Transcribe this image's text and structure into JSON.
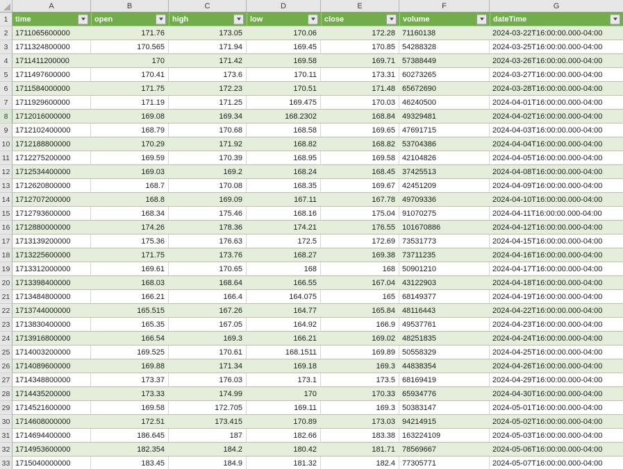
{
  "column_letters": [
    "A",
    "B",
    "C",
    "D",
    "E",
    "F",
    "G"
  ],
  "header": {
    "row_number": "1",
    "labels": [
      "time",
      "open",
      "high",
      "low",
      "close",
      "volume",
      "dateTime"
    ]
  },
  "first_data_row_number": 2,
  "active_row_number": 8,
  "rows": [
    [
      "1711065600000",
      "171.76",
      "173.05",
      "170.06",
      "172.28",
      "71160138",
      "2024-03-22T16:00:00.000-04:00"
    ],
    [
      "1711324800000",
      "170.565",
      "171.94",
      "169.45",
      "170.85",
      "54288328",
      "2024-03-25T16:00:00.000-04:00"
    ],
    [
      "1711411200000",
      "170",
      "171.42",
      "169.58",
      "169.71",
      "57388449",
      "2024-03-26T16:00:00.000-04:00"
    ],
    [
      "1711497600000",
      "170.41",
      "173.6",
      "170.11",
      "173.31",
      "60273265",
      "2024-03-27T16:00:00.000-04:00"
    ],
    [
      "1711584000000",
      "171.75",
      "172.23",
      "170.51",
      "171.48",
      "65672690",
      "2024-03-28T16:00:00.000-04:00"
    ],
    [
      "1711929600000",
      "171.19",
      "171.25",
      "169.475",
      "170.03",
      "46240500",
      "2024-04-01T16:00:00.000-04:00"
    ],
    [
      "1712016000000",
      "169.08",
      "169.34",
      "168.2302",
      "168.84",
      "49329481",
      "2024-04-02T16:00:00.000-04:00"
    ],
    [
      "1712102400000",
      "168.79",
      "170.68",
      "168.58",
      "169.65",
      "47691715",
      "2024-04-03T16:00:00.000-04:00"
    ],
    [
      "1712188800000",
      "170.29",
      "171.92",
      "168.82",
      "168.82",
      "53704386",
      "2024-04-04T16:00:00.000-04:00"
    ],
    [
      "1712275200000",
      "169.59",
      "170.39",
      "168.95",
      "169.58",
      "42104826",
      "2024-04-05T16:00:00.000-04:00"
    ],
    [
      "1712534400000",
      "169.03",
      "169.2",
      "168.24",
      "168.45",
      "37425513",
      "2024-04-08T16:00:00.000-04:00"
    ],
    [
      "1712620800000",
      "168.7",
      "170.08",
      "168.35",
      "169.67",
      "42451209",
      "2024-04-09T16:00:00.000-04:00"
    ],
    [
      "1712707200000",
      "168.8",
      "169.09",
      "167.11",
      "167.78",
      "49709336",
      "2024-04-10T16:00:00.000-04:00"
    ],
    [
      "1712793600000",
      "168.34",
      "175.46",
      "168.16",
      "175.04",
      "91070275",
      "2024-04-11T16:00:00.000-04:00"
    ],
    [
      "1712880000000",
      "174.26",
      "178.36",
      "174.21",
      "176.55",
      "101670886",
      "2024-04-12T16:00:00.000-04:00"
    ],
    [
      "1713139200000",
      "175.36",
      "176.63",
      "172.5",
      "172.69",
      "73531773",
      "2024-04-15T16:00:00.000-04:00"
    ],
    [
      "1713225600000",
      "171.75",
      "173.76",
      "168.27",
      "169.38",
      "73711235",
      "2024-04-16T16:00:00.000-04:00"
    ],
    [
      "1713312000000",
      "169.61",
      "170.65",
      "168",
      "168",
      "50901210",
      "2024-04-17T16:00:00.000-04:00"
    ],
    [
      "1713398400000",
      "168.03",
      "168.64",
      "166.55",
      "167.04",
      "43122903",
      "2024-04-18T16:00:00.000-04:00"
    ],
    [
      "1713484800000",
      "166.21",
      "166.4",
      "164.075",
      "165",
      "68149377",
      "2024-04-19T16:00:00.000-04:00"
    ],
    [
      "1713744000000",
      "165.515",
      "167.26",
      "164.77",
      "165.84",
      "48116443",
      "2024-04-22T16:00:00.000-04:00"
    ],
    [
      "1713830400000",
      "165.35",
      "167.05",
      "164.92",
      "166.9",
      "49537761",
      "2024-04-23T16:00:00.000-04:00"
    ],
    [
      "1713916800000",
      "166.54",
      "169.3",
      "166.21",
      "169.02",
      "48251835",
      "2024-04-24T16:00:00.000-04:00"
    ],
    [
      "1714003200000",
      "169.525",
      "170.61",
      "168.1511",
      "169.89",
      "50558329",
      "2024-04-25T16:00:00.000-04:00"
    ],
    [
      "1714089600000",
      "169.88",
      "171.34",
      "169.18",
      "169.3",
      "44838354",
      "2024-04-26T16:00:00.000-04:00"
    ],
    [
      "1714348800000",
      "173.37",
      "176.03",
      "173.1",
      "173.5",
      "68169419",
      "2024-04-29T16:00:00.000-04:00"
    ],
    [
      "1714435200000",
      "173.33",
      "174.99",
      "170",
      "170.33",
      "65934776",
      "2024-04-30T16:00:00.000-04:00"
    ],
    [
      "1714521600000",
      "169.58",
      "172.705",
      "169.11",
      "169.3",
      "50383147",
      "2024-05-01T16:00:00.000-04:00"
    ],
    [
      "1714608000000",
      "172.51",
      "173.415",
      "170.89",
      "173.03",
      "94214915",
      "2024-05-02T16:00:00.000-04:00"
    ],
    [
      "1714694400000",
      "186.645",
      "187",
      "182.66",
      "183.38",
      "163224109",
      "2024-05-03T16:00:00.000-04:00"
    ],
    [
      "1714953600000",
      "182.354",
      "184.2",
      "180.42",
      "181.71",
      "78569667",
      "2024-05-06T16:00:00.000-04:00"
    ],
    [
      "1715040000000",
      "183.45",
      "184.9",
      "181.32",
      "182.4",
      "77305771",
      "2024-05-07T16:00:00.000-04:00"
    ]
  ],
  "colors": {
    "header_green": "#71AE4B",
    "banded_row_green": "#E4EEDB",
    "row_border_green": "#A9CD8B",
    "gridline_grey": "#D7D7D7",
    "header_strip_grey": "#E6E6E6",
    "active_row_accent": "#70AD47"
  }
}
